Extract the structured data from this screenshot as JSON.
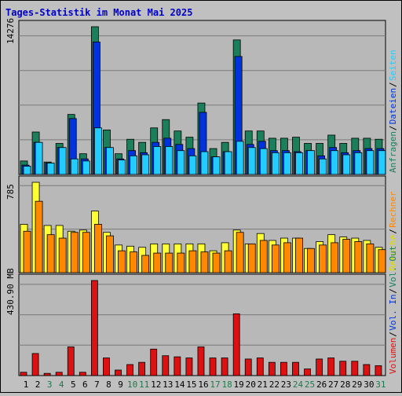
{
  "title": "Tages-Statistik im Monat Mai 2025",
  "colors": {
    "background": "#c0c0c0",
    "plot_bg": "#b8b8b8",
    "grid": "#7a7a7a",
    "title": "#0000cc",
    "anfragen": "#1a7f5a",
    "dateien": "#0033dd",
    "seiten": "#22ccff",
    "besuche": "#ffff33",
    "rechner": "#ff8800",
    "volumen": "#dd1111",
    "weekend": "#1e7a4a",
    "weekday": "#000000"
  },
  "axis_labels": {
    "top_max": "14276",
    "mid_max": "785",
    "bottom_max": "430.90 MB"
  },
  "right_labels": {
    "top": [
      {
        "text": "Anfragen",
        "color": "#1a7f5a"
      },
      {
        "text": "Dateien",
        "color": "#0033dd"
      },
      {
        "text": "Seiten",
        "color": "#22ccff"
      }
    ],
    "mid": [
      {
        "text": "Besuche",
        "color": "#dddd00"
      },
      {
        "text": "Rechner",
        "color": "#ff8800"
      }
    ],
    "bottom": [
      {
        "text": "Volumen",
        "color": "#dd1111"
      },
      {
        "text": "Vol. In",
        "color": "#0033dd"
      },
      {
        "text": "Vol. Out",
        "color": "#1a7f5a"
      }
    ]
  },
  "chart_data": [
    {
      "type": "bar",
      "title": "Tages-Statistik im Monat Mai 2025",
      "categories": [
        "1",
        "2",
        "3",
        "4",
        "5",
        "6",
        "7",
        "8",
        "9",
        "10",
        "11",
        "12",
        "13",
        "14",
        "15",
        "16",
        "17",
        "18",
        "19",
        "20",
        "21",
        "22",
        "23",
        "24",
        "25",
        "26",
        "27",
        "28",
        "29",
        "30",
        "31"
      ],
      "ylim": [
        0,
        14276
      ],
      "series": [
        {
          "name": "Anfragen",
          "values": [
            1300,
            4100,
            1200,
            3000,
            5800,
            2000,
            14276,
            4300,
            2000,
            3400,
            3100,
            4500,
            5300,
            4200,
            3600,
            6900,
            2500,
            3100,
            13000,
            4200,
            4200,
            3500,
            3500,
            3600,
            3000,
            3000,
            3800,
            3000,
            3500,
            3500,
            3400
          ]
        },
        {
          "name": "Dateien",
          "values": [
            900,
            3100,
            1100,
            2600,
            5400,
            1500,
            12800,
            2600,
            1500,
            2300,
            2100,
            3100,
            3500,
            2900,
            2500,
            6000,
            1700,
            2200,
            11400,
            2900,
            3200,
            2300,
            2300,
            2200,
            2300,
            1800,
            2600,
            2100,
            2300,
            2500,
            2500
          ]
        },
        {
          "name": "Seiten",
          "values": [
            800,
            3100,
            1100,
            2600,
            1500,
            1300,
            4500,
            2600,
            1400,
            1800,
            1900,
            2700,
            2700,
            2300,
            1800,
            2200,
            1700,
            2200,
            3200,
            2600,
            2500,
            2100,
            2100,
            2100,
            2300,
            1500,
            2300,
            1900,
            2100,
            2300,
            2300
          ]
        }
      ]
    },
    {
      "type": "bar",
      "categories": [
        "1",
        "2",
        "3",
        "4",
        "5",
        "6",
        "7",
        "8",
        "9",
        "10",
        "11",
        "12",
        "13",
        "14",
        "15",
        "16",
        "17",
        "18",
        "19",
        "20",
        "21",
        "22",
        "23",
        "24",
        "25",
        "26",
        "27",
        "28",
        "29",
        "30",
        "31"
      ],
      "ylim": [
        0,
        785
      ],
      "series": [
        {
          "name": "Besuche",
          "values": [
            420,
            785,
            410,
            410,
            360,
            370,
            535,
            350,
            240,
            230,
            220,
            250,
            250,
            250,
            250,
            250,
            190,
            260,
            370,
            250,
            340,
            280,
            300,
            300,
            210,
            270,
            330,
            310,
            300,
            280,
            220
          ]
        },
        {
          "name": "Rechner",
          "values": [
            360,
            620,
            330,
            300,
            350,
            350,
            420,
            320,
            190,
            180,
            150,
            170,
            170,
            170,
            190,
            180,
            170,
            190,
            350,
            250,
            280,
            240,
            260,
            300,
            210,
            240,
            260,
            290,
            270,
            250,
            200
          ]
        }
      ]
    },
    {
      "type": "bar",
      "categories": [
        "1",
        "2",
        "3",
        "4",
        "5",
        "6",
        "7",
        "8",
        "9",
        "10",
        "11",
        "12",
        "13",
        "14",
        "15",
        "16",
        "17",
        "18",
        "19",
        "20",
        "21",
        "22",
        "23",
        "24",
        "25",
        "26",
        "27",
        "28",
        "29",
        "30",
        "31"
      ],
      "ylim": [
        0,
        430.9
      ],
      "series": [
        {
          "name": "Volumen",
          "values": [
            15,
            100,
            10,
            15,
            130,
            15,
            430.9,
            80,
            25,
            50,
            60,
            120,
            90,
            85,
            80,
            130,
            80,
            80,
            280,
            75,
            80,
            60,
            60,
            60,
            30,
            75,
            80,
            65,
            65,
            50,
            45
          ]
        }
      ]
    }
  ],
  "weekend_days": [
    "3",
    "4",
    "10",
    "11",
    "17",
    "18",
    "24",
    "25",
    "31"
  ]
}
